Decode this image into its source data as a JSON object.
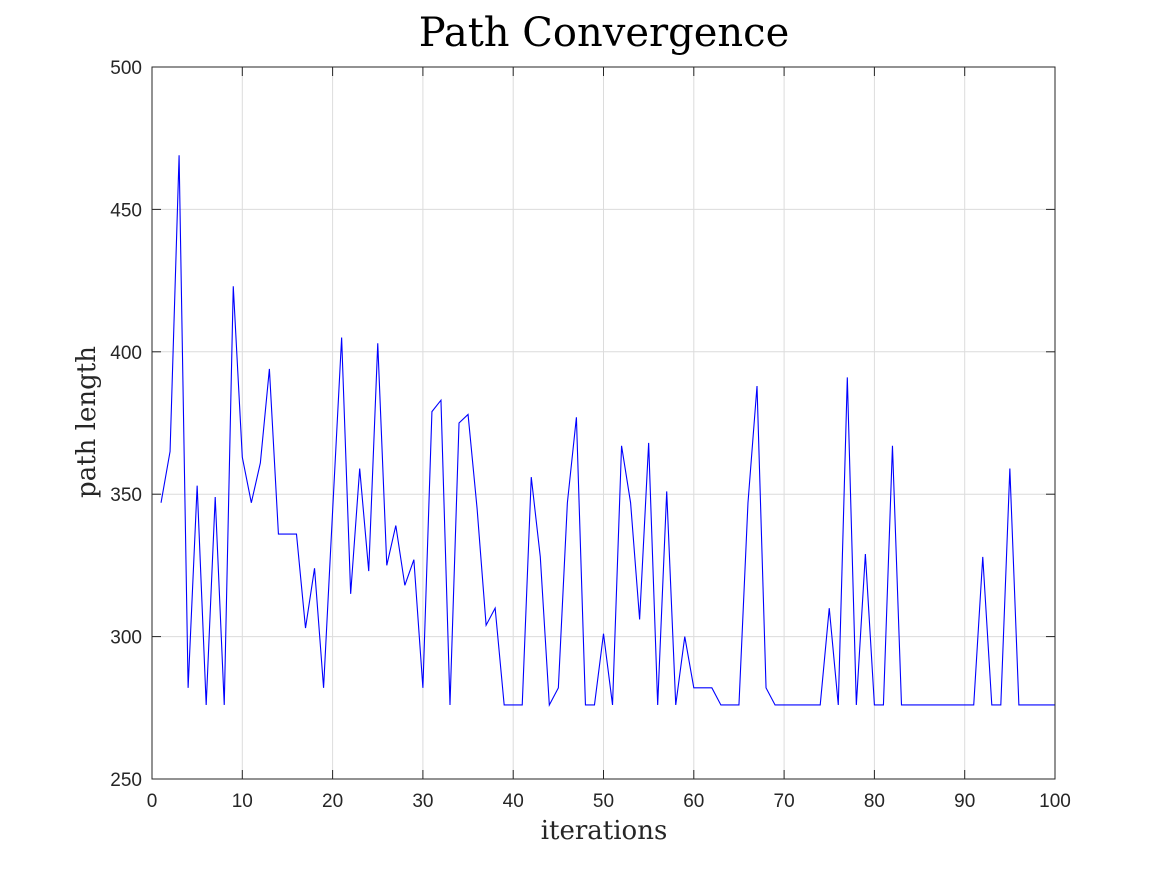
{
  "chart_data": {
    "type": "line",
    "title": "Path Convergence",
    "xlabel": "iterations",
    "ylabel": "path length",
    "xlim": [
      0,
      100
    ],
    "ylim": [
      250,
      500
    ],
    "xticks": [
      0,
      10,
      20,
      30,
      40,
      50,
      60,
      70,
      80,
      90,
      100
    ],
    "yticks": [
      250,
      300,
      350,
      400,
      450,
      500
    ],
    "grid": true,
    "box": true,
    "series": [
      {
        "color": "#0000ff",
        "x": [
          1,
          2,
          3,
          4,
          5,
          6,
          7,
          8,
          9,
          10,
          11,
          12,
          13,
          14,
          15,
          16,
          17,
          18,
          19,
          20,
          21,
          22,
          23,
          24,
          25,
          26,
          27,
          28,
          29,
          30,
          31,
          32,
          33,
          34,
          35,
          36,
          37,
          38,
          39,
          40,
          41,
          42,
          43,
          44,
          45,
          46,
          47,
          48,
          49,
          50,
          51,
          52,
          53,
          54,
          55,
          56,
          57,
          58,
          59,
          60,
          61,
          62,
          63,
          64,
          65,
          66,
          67,
          68,
          69,
          70,
          71,
          72,
          73,
          74,
          75,
          76,
          77,
          78,
          79,
          80,
          81,
          82,
          83,
          84,
          85,
          86,
          87,
          88,
          89,
          90,
          91,
          92,
          93,
          94,
          95,
          96,
          97,
          98,
          99,
          100
        ],
        "y": [
          347,
          365,
          469,
          282,
          353,
          276,
          349,
          276,
          423,
          363,
          347,
          361,
          394,
          336,
          336,
          336,
          303,
          324,
          282,
          344,
          405,
          315,
          359,
          323,
          403,
          325,
          339,
          318,
          327,
          282,
          379,
          383,
          276,
          375,
          378,
          345,
          304,
          310,
          276,
          276,
          276,
          356,
          328,
          276,
          282,
          347,
          377,
          276,
          276,
          301,
          276,
          367,
          347,
          306,
          368,
          276,
          351,
          276,
          300,
          282,
          282,
          282,
          276,
          276,
          276,
          347,
          388,
          282,
          276,
          276,
          276,
          276,
          276,
          276,
          310,
          276,
          391,
          276,
          329,
          276,
          276,
          367,
          276,
          276,
          276,
          276,
          276,
          276,
          276,
          276,
          276,
          328,
          276,
          276,
          359,
          276,
          276,
          276,
          276,
          276
        ]
      }
    ]
  }
}
